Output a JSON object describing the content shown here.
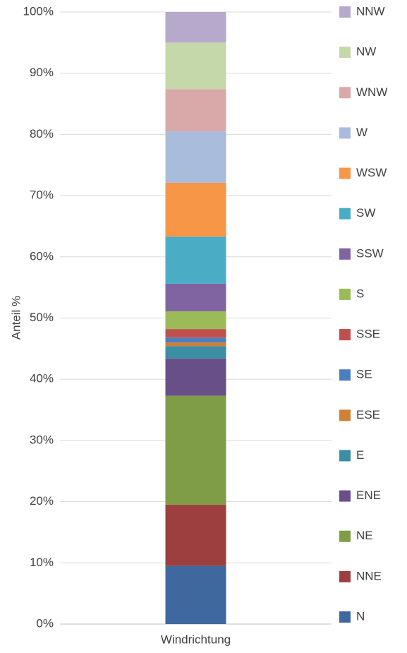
{
  "chart_data": {
    "type": "stacked_bar",
    "y_label": "Anteil %",
    "categories": [
      "Windrichtung"
    ],
    "series": [
      {
        "name": "N",
        "color": "#3f689e",
        "values": [
          9.5
        ]
      },
      {
        "name": "NNE",
        "color": "#9e3f3f",
        "values": [
          10.0
        ]
      },
      {
        "name": "NE",
        "color": "#7f9c47",
        "values": [
          17.8
        ]
      },
      {
        "name": "ENE",
        "color": "#694f88",
        "values": [
          6.1
        ]
      },
      {
        "name": "E",
        "color": "#3b8ea3",
        "values": [
          2.0
        ]
      },
      {
        "name": "ESE",
        "color": "#d07f36",
        "values": [
          0.6
        ]
      },
      {
        "name": "SE",
        "color": "#4a7fc0",
        "values": [
          0.8
        ]
      },
      {
        "name": "SSE",
        "color": "#c0504d",
        "values": [
          1.4
        ]
      },
      {
        "name": "S",
        "color": "#9bbb59",
        "values": [
          2.9
        ]
      },
      {
        "name": "SSW",
        "color": "#8064a2",
        "values": [
          4.5
        ]
      },
      {
        "name": "SW",
        "color": "#4bacc6",
        "values": [
          7.7
        ]
      },
      {
        "name": "WSW",
        "color": "#f79646",
        "values": [
          8.8
        ]
      },
      {
        "name": "W",
        "color": "#a9bcdc",
        "values": [
          8.4
        ]
      },
      {
        "name": "WNW",
        "color": "#d9a8a8",
        "values": [
          6.9
        ]
      },
      {
        "name": "NW",
        "color": "#c5d8a9",
        "values": [
          7.6
        ]
      },
      {
        "name": "NNW",
        "color": "#b7a9cc",
        "values": [
          5.0
        ]
      }
    ],
    "ylim": [
      0,
      100
    ],
    "yticks": [
      {
        "value": 0,
        "label": "0%"
      },
      {
        "value": 10,
        "label": "10%"
      },
      {
        "value": 20,
        "label": "20%"
      },
      {
        "value": 30,
        "label": "30%"
      },
      {
        "value": 40,
        "label": "40%"
      },
      {
        "value": 50,
        "label": "50%"
      },
      {
        "value": 60,
        "label": "60%"
      },
      {
        "value": 70,
        "label": "70%"
      },
      {
        "value": 80,
        "label": "80%"
      },
      {
        "value": 90,
        "label": "90%"
      },
      {
        "value": 100,
        "label": "100%"
      }
    ],
    "grid": true,
    "legend": "right"
  }
}
